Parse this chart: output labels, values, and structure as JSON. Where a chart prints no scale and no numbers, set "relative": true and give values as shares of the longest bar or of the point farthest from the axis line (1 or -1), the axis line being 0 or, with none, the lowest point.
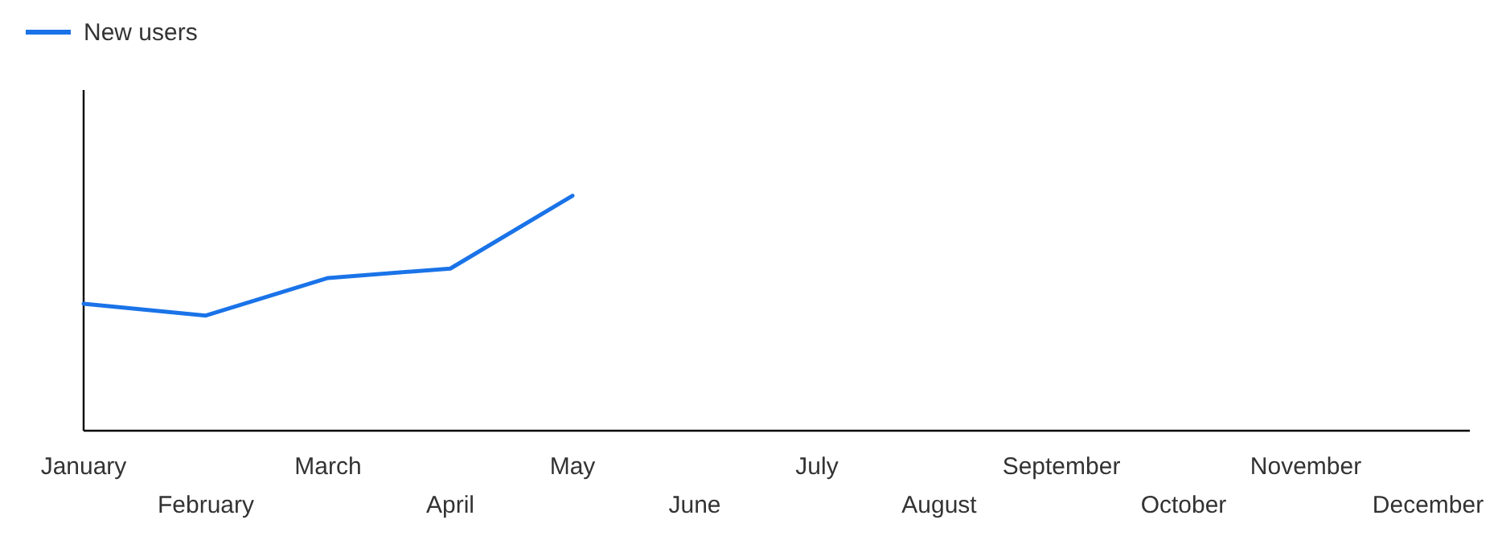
{
  "chart_data": {
    "type": "line",
    "relative": true,
    "categories": [
      "January",
      "February",
      "March",
      "April",
      "May",
      "June",
      "July",
      "August",
      "September",
      "October",
      "November",
      "December"
    ],
    "series": [
      {
        "name": "New users",
        "color": "#1a73e8",
        "values": [
          0.54,
          0.49,
          0.65,
          0.69,
          1,
          null,
          null,
          null,
          null,
          null,
          null,
          null
        ]
      }
    ],
    "legend": "top left",
    "marker": "none",
    "line_style": "solid"
  }
}
